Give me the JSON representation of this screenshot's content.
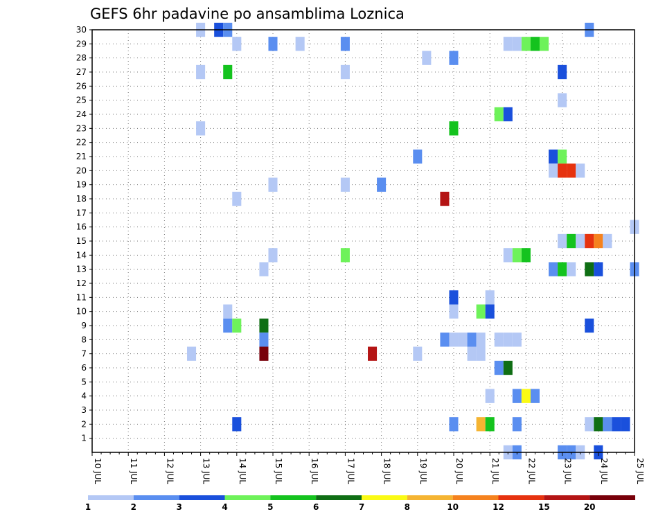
{
  "chart_data": {
    "type": "heatmap",
    "title": "GEFS 6hr padavine po ansamblima Loznica",
    "xlabel": "",
    "ylabel": "",
    "x_ticks": [
      "10 JUL",
      "11 JUL",
      "12 JUL",
      "13 JUL",
      "14 JUL",
      "15 JUL",
      "16 JUL",
      "17 JUL",
      "18 JUL",
      "19 JUL",
      "20 JUL",
      "21 JUL",
      "22 JUL",
      "23 JUL",
      "24 JUL",
      "25 JUL"
    ],
    "y_ticks": [
      "1",
      "2",
      "3",
      "4",
      "5",
      "6",
      "7",
      "8",
      "9",
      "10",
      "11",
      "12",
      "13",
      "14",
      "15",
      "16",
      "17",
      "18",
      "19",
      "20",
      "21",
      "22",
      "23",
      "24",
      "25",
      "26",
      "27",
      "28",
      "29",
      "30"
    ],
    "xlim_days": [
      0,
      15
    ],
    "ylim": [
      0,
      30
    ],
    "time_step_hours": 6,
    "grid": true,
    "colorbar": {
      "labels": [
        "1",
        "2",
        "3",
        "4",
        "5",
        "6",
        "7",
        "8",
        "10",
        "12",
        "15",
        "20"
      ],
      "colors": [
        "#b4c8f5",
        "#5a8ef0",
        "#1a50dc",
        "#6ef25a",
        "#14c31e",
        "#0f6e14",
        "#fafa14",
        "#f5b432",
        "#f5821e",
        "#e6320f",
        "#b41414",
        "#78000a"
      ]
    },
    "cells_note": "each cell: [day offset from 10 JUL, member, color class index 0-11 into colorbar.colors]",
    "cells": [
      [
        3.0,
        30,
        0
      ],
      [
        3.5,
        30,
        2
      ],
      [
        3.75,
        30,
        1
      ],
      [
        13.75,
        30,
        1
      ],
      [
        4.0,
        29,
        0
      ],
      [
        5.0,
        29,
        1
      ],
      [
        5.75,
        29,
        0
      ],
      [
        7.0,
        29,
        1
      ],
      [
        11.5,
        29,
        0
      ],
      [
        11.75,
        29,
        0
      ],
      [
        12.0,
        29,
        3
      ],
      [
        12.25,
        29,
        4
      ],
      [
        12.5,
        29,
        3
      ],
      [
        9.25,
        28,
        0
      ],
      [
        10.0,
        28,
        1
      ],
      [
        3.0,
        27,
        0
      ],
      [
        3.75,
        27,
        4
      ],
      [
        7.0,
        27,
        0
      ],
      [
        13.0,
        27,
        2
      ],
      [
        13.0,
        25,
        0
      ],
      [
        11.25,
        24,
        3
      ],
      [
        11.5,
        24,
        2
      ],
      [
        3.0,
        23,
        0
      ],
      [
        10.0,
        23,
        4
      ],
      [
        9.0,
        21,
        1
      ],
      [
        12.75,
        21,
        2
      ],
      [
        13.0,
        21,
        3
      ],
      [
        12.75,
        20,
        0
      ],
      [
        13.0,
        20,
        9
      ],
      [
        13.25,
        20,
        9
      ],
      [
        13.5,
        20,
        0
      ],
      [
        5.0,
        19,
        0
      ],
      [
        7.0,
        19,
        0
      ],
      [
        8.0,
        19,
        1
      ],
      [
        4.0,
        18,
        0
      ],
      [
        9.75,
        18,
        10
      ],
      [
        15.0,
        16,
        0
      ],
      [
        13.0,
        15,
        0
      ],
      [
        13.25,
        15,
        4
      ],
      [
        13.5,
        15,
        0
      ],
      [
        13.75,
        15,
        9
      ],
      [
        14.0,
        15,
        8
      ],
      [
        14.25,
        15,
        0
      ],
      [
        5.0,
        14,
        0
      ],
      [
        7.0,
        14,
        3
      ],
      [
        11.5,
        14,
        0
      ],
      [
        11.75,
        14,
        3
      ],
      [
        12.0,
        14,
        4
      ],
      [
        4.75,
        13,
        0
      ],
      [
        12.75,
        13,
        1
      ],
      [
        13.0,
        13,
        4
      ],
      [
        13.25,
        13,
        0
      ],
      [
        13.75,
        13,
        5
      ],
      [
        14.0,
        13,
        2
      ],
      [
        15.0,
        13,
        1
      ],
      [
        10.0,
        11,
        2
      ],
      [
        11.0,
        11,
        0
      ],
      [
        3.75,
        10,
        0
      ],
      [
        10.0,
        10,
        0
      ],
      [
        10.75,
        10,
        3
      ],
      [
        11.0,
        10,
        2
      ],
      [
        3.75,
        9,
        1
      ],
      [
        4.0,
        9,
        3
      ],
      [
        4.75,
        9,
        5
      ],
      [
        13.75,
        9,
        2
      ],
      [
        4.75,
        8,
        1
      ],
      [
        9.75,
        8,
        1
      ],
      [
        10.0,
        8,
        0
      ],
      [
        10.25,
        8,
        0
      ],
      [
        10.5,
        8,
        1
      ],
      [
        10.75,
        8,
        0
      ],
      [
        11.25,
        8,
        0
      ],
      [
        11.5,
        8,
        0
      ],
      [
        11.75,
        8,
        0
      ],
      [
        2.75,
        7,
        0
      ],
      [
        4.75,
        7,
        11
      ],
      [
        7.75,
        7,
        10
      ],
      [
        9.0,
        7,
        0
      ],
      [
        10.5,
        7,
        0
      ],
      [
        10.75,
        7,
        0
      ],
      [
        11.25,
        6,
        1
      ],
      [
        11.5,
        6,
        5
      ],
      [
        11.0,
        4,
        0
      ],
      [
        11.75,
        4,
        1
      ],
      [
        12.0,
        4,
        6
      ],
      [
        12.25,
        4,
        1
      ],
      [
        4.0,
        2,
        2
      ],
      [
        10.0,
        2,
        1
      ],
      [
        10.75,
        2,
        7
      ],
      [
        11.0,
        2,
        4
      ],
      [
        11.75,
        2,
        1
      ],
      [
        13.75,
        2,
        0
      ],
      [
        14.0,
        2,
        5
      ],
      [
        14.25,
        2,
        1
      ],
      [
        14.5,
        2,
        2
      ],
      [
        14.75,
        2,
        2
      ],
      [
        11.5,
        0,
        0
      ],
      [
        11.75,
        0,
        1
      ],
      [
        13.0,
        0,
        1
      ],
      [
        13.25,
        0,
        1
      ],
      [
        13.5,
        0,
        0
      ],
      [
        14.0,
        0,
        2
      ]
    ]
  }
}
